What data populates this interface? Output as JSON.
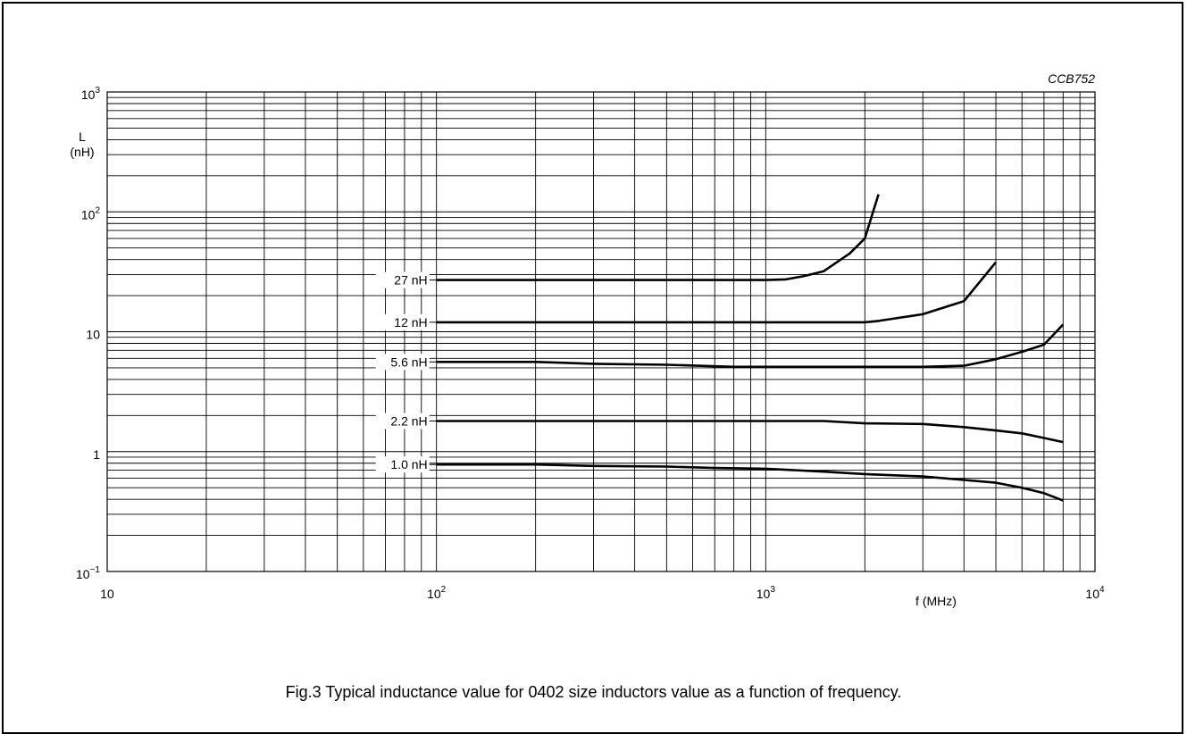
{
  "figure_id": "CCB752",
  "caption": "Fig.3  Typical inductance value for 0402 size inductors value as a function of frequency.",
  "chart_data": {
    "type": "line",
    "title": "",
    "xlabel": "f (MHz)",
    "ylabel": "L (nH)",
    "xscale": "log",
    "yscale": "log",
    "xlim": [
      10,
      10000
    ],
    "ylim": [
      0.1,
      1000
    ],
    "grid": true,
    "x_tick_labels": [
      {
        "value": 10,
        "base": "10",
        "exp": ""
      },
      {
        "value": 100,
        "base": "10",
        "exp": "2"
      },
      {
        "value": 1000,
        "base": "10",
        "exp": "3"
      },
      {
        "value": 10000,
        "base": "10",
        "exp": "4"
      }
    ],
    "y_tick_labels": [
      {
        "value": 1000,
        "base": "10",
        "exp": "3"
      },
      {
        "value": 100,
        "base": "10",
        "exp": "2"
      },
      {
        "value": 10,
        "base": "10",
        "exp": ""
      },
      {
        "value": 1,
        "base": "1",
        "exp": ""
      },
      {
        "value": 0.1,
        "base": "10",
        "exp": "−1"
      }
    ],
    "ylabel_lines": [
      "L",
      "(nH)"
    ],
    "series": [
      {
        "name": "27 nH",
        "label_value": 27,
        "x": [
          100,
          1000,
          1150,
          1300,
          1500,
          1800,
          2000,
          2200
        ],
        "y": [
          27,
          27,
          27.3,
          29,
          32,
          45,
          60,
          140
        ]
      },
      {
        "name": "12 nH",
        "label_value": 12,
        "x": [
          100,
          1000,
          2000,
          2200,
          3000,
          4000,
          5000
        ],
        "y": [
          12,
          12,
          12,
          12.3,
          14,
          18,
          38
        ]
      },
      {
        "name": "5.6 nH",
        "label_value": 5.6,
        "x": [
          100,
          200,
          300,
          500,
          800,
          1000,
          2000,
          3000,
          4000,
          5000,
          6000,
          7000,
          8000
        ],
        "y": [
          5.6,
          5.6,
          5.4,
          5.3,
          5.1,
          5.1,
          5.1,
          5.1,
          5.2,
          5.9,
          6.8,
          7.8,
          11.5
        ]
      },
      {
        "name": "2.2 nH",
        "label_value": 2.2,
        "x": [
          100,
          1000,
          1500,
          2000,
          3000,
          4000,
          5000,
          6000,
          7000,
          8000
        ],
        "y": [
          1.8,
          1.8,
          1.8,
          1.72,
          1.7,
          1.6,
          1.5,
          1.42,
          1.3,
          1.2
        ]
      },
      {
        "name": "1.0 nH",
        "label_value": 1.0,
        "x": [
          100,
          200,
          300,
          500,
          700,
          1000,
          1500,
          2000,
          3000,
          4000,
          5000,
          6000,
          7000,
          8000
        ],
        "y": [
          0.78,
          0.78,
          0.76,
          0.75,
          0.73,
          0.72,
          0.68,
          0.65,
          0.62,
          0.58,
          0.55,
          0.5,
          0.45,
          0.39
        ]
      }
    ]
  }
}
